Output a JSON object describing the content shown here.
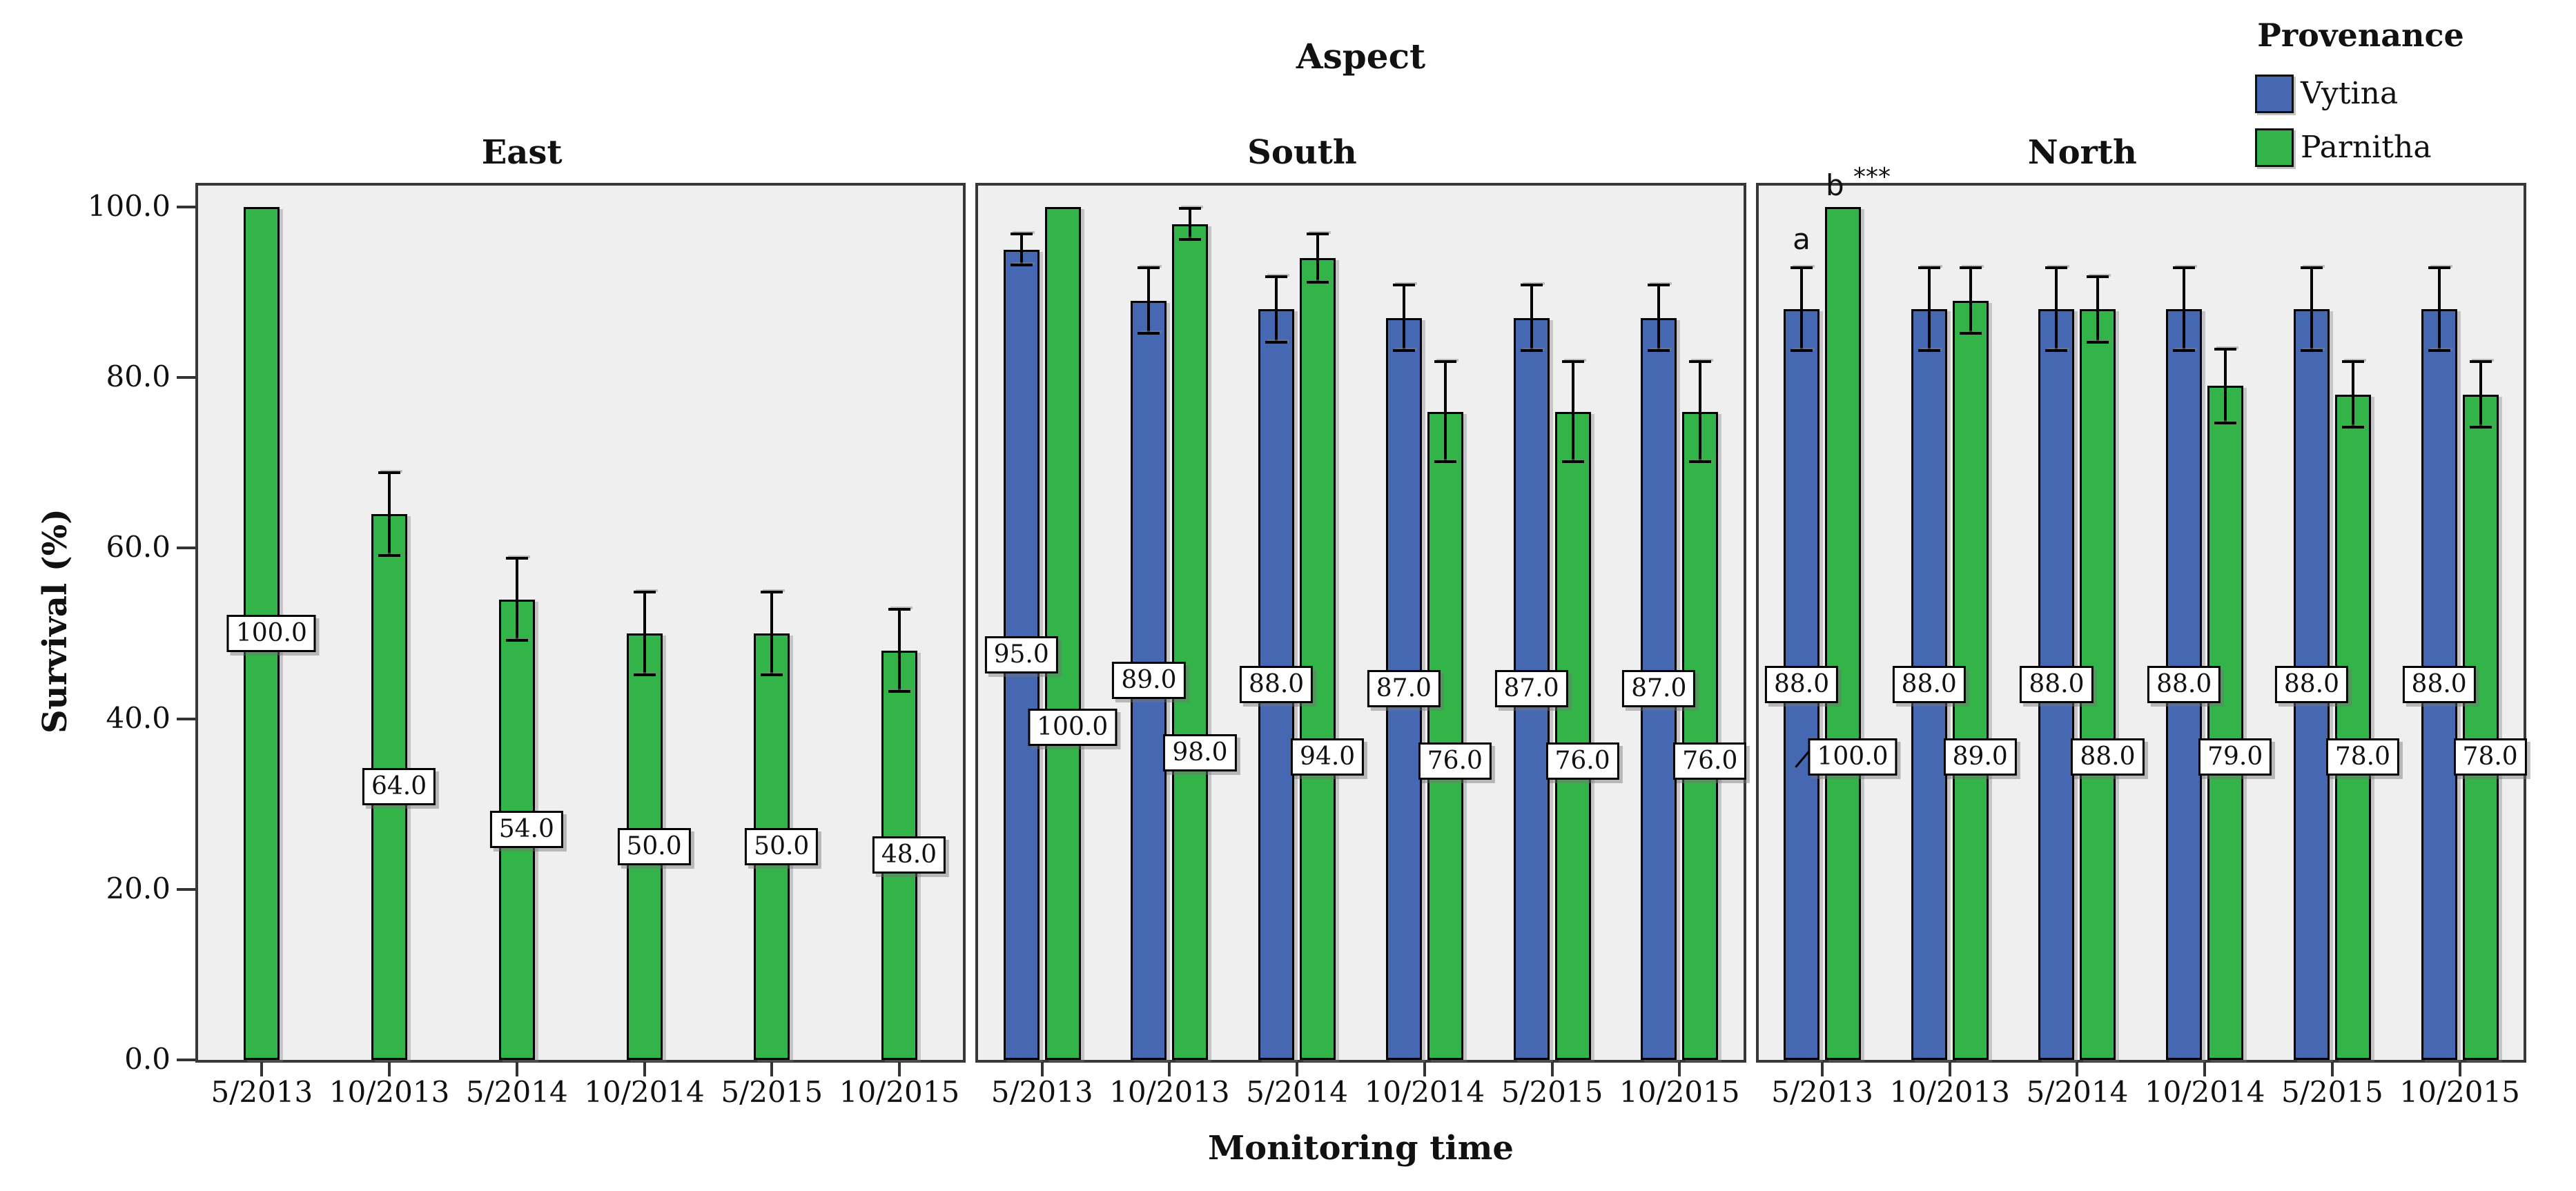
{
  "figure": {
    "facet_title": "Aspect",
    "x_axis_title": "Monitoring time",
    "y_axis_title": "Survival (%)",
    "legend": {
      "title": "Provenance",
      "entries": [
        {
          "label": "Vytina",
          "color": "#4668b3"
        },
        {
          "label": "Parnitha",
          "color": "#33b449"
        }
      ]
    }
  },
  "chart_data": {
    "type": "bar",
    "title": "Aspect",
    "xlabel": "Monitoring time",
    "ylabel": "Survival (%)",
    "ylim": [
      0,
      102.5
    ],
    "yticks": [
      "0.0",
      "20.0",
      "40.0",
      "60.0",
      "80.0",
      "100.0"
    ],
    "ytick_values": [
      0,
      20,
      40,
      60,
      80,
      100
    ],
    "grid": false,
    "legend_position": "top-right",
    "categories": [
      "5/2013",
      "10/2013",
      "5/2014",
      "10/2014",
      "5/2015",
      "10/2015"
    ],
    "panels": [
      {
        "title": "East",
        "series": [
          {
            "name": "Vytina",
            "values": [
              null,
              null,
              null,
              null,
              null,
              null
            ],
            "errors": [
              null,
              null,
              null,
              null,
              null,
              null
            ]
          },
          {
            "name": "Parnitha",
            "values": [
              100,
              64,
              54,
              50,
              50,
              48
            ],
            "errors": [
              null,
              5,
              5,
              5,
              5,
              5
            ]
          }
        ],
        "bar_labels": {
          "Parnitha": [
            "100.0",
            "64.0",
            "54.0",
            "50.0",
            "50.0",
            "48.0"
          ]
        }
      },
      {
        "title": "South",
        "series": [
          {
            "name": "Vytina",
            "values": [
              95,
              89,
              88,
              87,
              87,
              87
            ],
            "errors": [
              2,
              4,
              4,
              4,
              4,
              4
            ]
          },
          {
            "name": "Parnitha",
            "values": [
              100,
              98,
              94,
              76,
              76,
              76
            ],
            "errors": [
              null,
              2,
              3,
              6,
              6,
              6
            ]
          }
        ],
        "bar_labels": {
          "Vytina": [
            "95.0",
            "89.0",
            "88.0",
            "87.0",
            "87.0",
            "87.0"
          ],
          "Parnitha": [
            "100.0",
            "98.0",
            "94.0",
            "76.0",
            "76.0",
            "76.0"
          ]
        }
      },
      {
        "title": "North",
        "series": [
          {
            "name": "Vytina",
            "values": [
              88,
              88,
              88,
              88,
              88,
              88
            ],
            "errors": [
              5,
              5,
              5,
              5,
              5,
              5
            ]
          },
          {
            "name": "Parnitha",
            "values": [
              100,
              89,
              88,
              79,
              78,
              78
            ],
            "errors": [
              null,
              4,
              4,
              4.5,
              4,
              4
            ]
          }
        ],
        "bar_labels": {
          "Vytina": [
            "88.0",
            "88.0",
            "88.0",
            "88.0",
            "88.0",
            "88.0"
          ],
          "Parnitha": [
            "100.0",
            "89.0",
            "88.0",
            "79.0",
            "78.0",
            "78.0"
          ]
        },
        "annotations": [
          {
            "text": "a",
            "superscript": "",
            "series": "Vytina",
            "category_index": 0
          },
          {
            "text": "b",
            "superscript": "***",
            "series": "Parnitha",
            "category_index": 0
          }
        ],
        "label_callout": {
          "series": "Parnitha",
          "category_index": 0
        }
      }
    ]
  }
}
